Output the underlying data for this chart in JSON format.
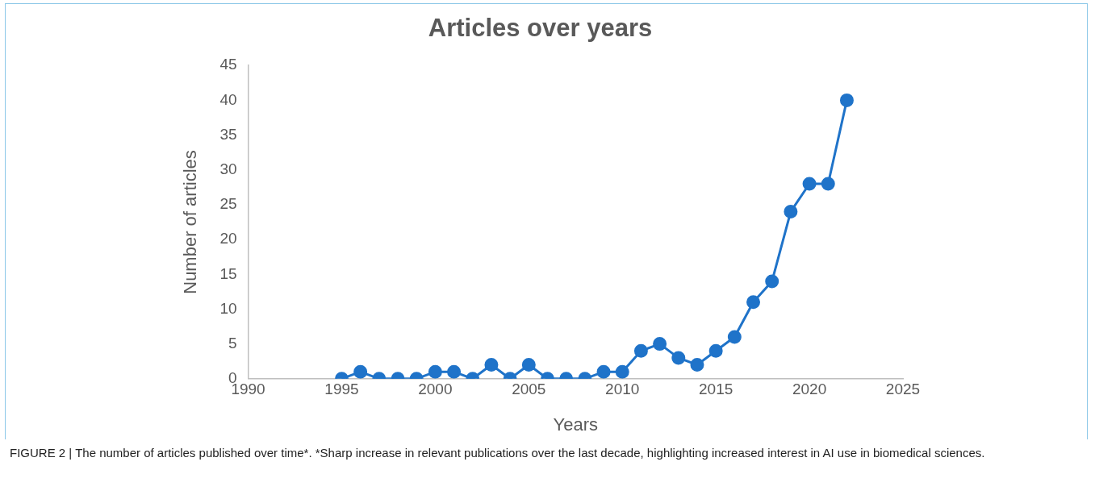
{
  "chart_data": {
    "type": "line",
    "title": "Articles over years",
    "xlabel": "Years",
    "ylabel": "Number of articles",
    "x": [
      1995,
      1996,
      1997,
      1998,
      1999,
      2000,
      2001,
      2002,
      2003,
      2004,
      2005,
      2006,
      2007,
      2008,
      2009,
      2010,
      2011,
      2012,
      2013,
      2014,
      2015,
      2016,
      2017,
      2018,
      2019,
      2020,
      2021,
      2022
    ],
    "series": [
      {
        "color": "#1f73c9",
        "values": [
          0,
          1,
          0,
          0,
          0,
          1,
          1,
          0,
          2,
          0,
          2,
          0,
          0,
          0,
          1,
          1,
          4,
          5,
          3,
          2,
          4,
          6,
          11,
          14,
          24,
          28,
          28,
          40
        ]
      }
    ],
    "xlim": [
      1990,
      2025
    ],
    "xticks": [
      1990,
      1995,
      2000,
      2005,
      2010,
      2015,
      2020,
      2025
    ],
    "ylim": [
      0,
      45
    ],
    "yticks": [
      0,
      5,
      10,
      15,
      20,
      25,
      30,
      35,
      40,
      45
    ],
    "grid": false,
    "legend": false,
    "marker": "circle",
    "line_style": "solid",
    "annotations": [
      "FIGURE 2 | The number of articles published over time*. *Sharp increase in relevant publications over the last decade, highlighting increased interest in AI use in biomedical sciences."
    ]
  }
}
